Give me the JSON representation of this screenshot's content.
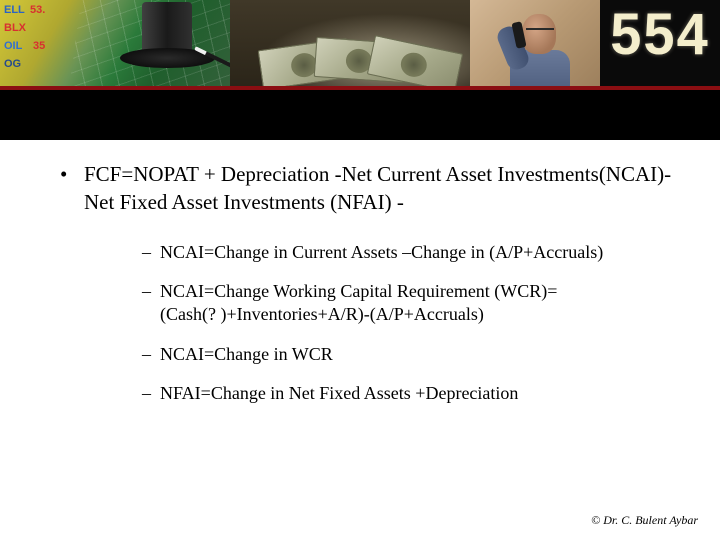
{
  "banner": {
    "tickers": {
      "t1": "ELL",
      "t1b": "53.",
      "t2": "BLX",
      "t3": "OIL",
      "t3b": "35",
      "t4": "OG"
    },
    "digits": "554"
  },
  "content": {
    "main": "FCF=NOPAT + Depreciation -Net Current Asset Investments(NCAI)- Net Fixed Asset Investments (NFAI) -",
    "subs": [
      "NCAI=Change in Current Assets –Change in (A/P+Accruals)",
      "NCAI=Change Working Capital Requirement (WCR)=(Cash(? )+Inventories+A/R)-(A/P+Accruals)",
      "NCAI=Change in WCR",
      "NFAI=Change in Net Fixed Assets +Depreciation"
    ]
  },
  "footer": "©  Dr. C. Bulent Aybar",
  "colors": {
    "accent_bar": "#8b0e12",
    "background": "#ffffff",
    "text": "#000000"
  },
  "typography": {
    "body_family": "Times New Roman",
    "main_fontsize_pt": 16,
    "sub_fontsize_pt": 13.5,
    "footer_fontsize_pt": 9
  }
}
